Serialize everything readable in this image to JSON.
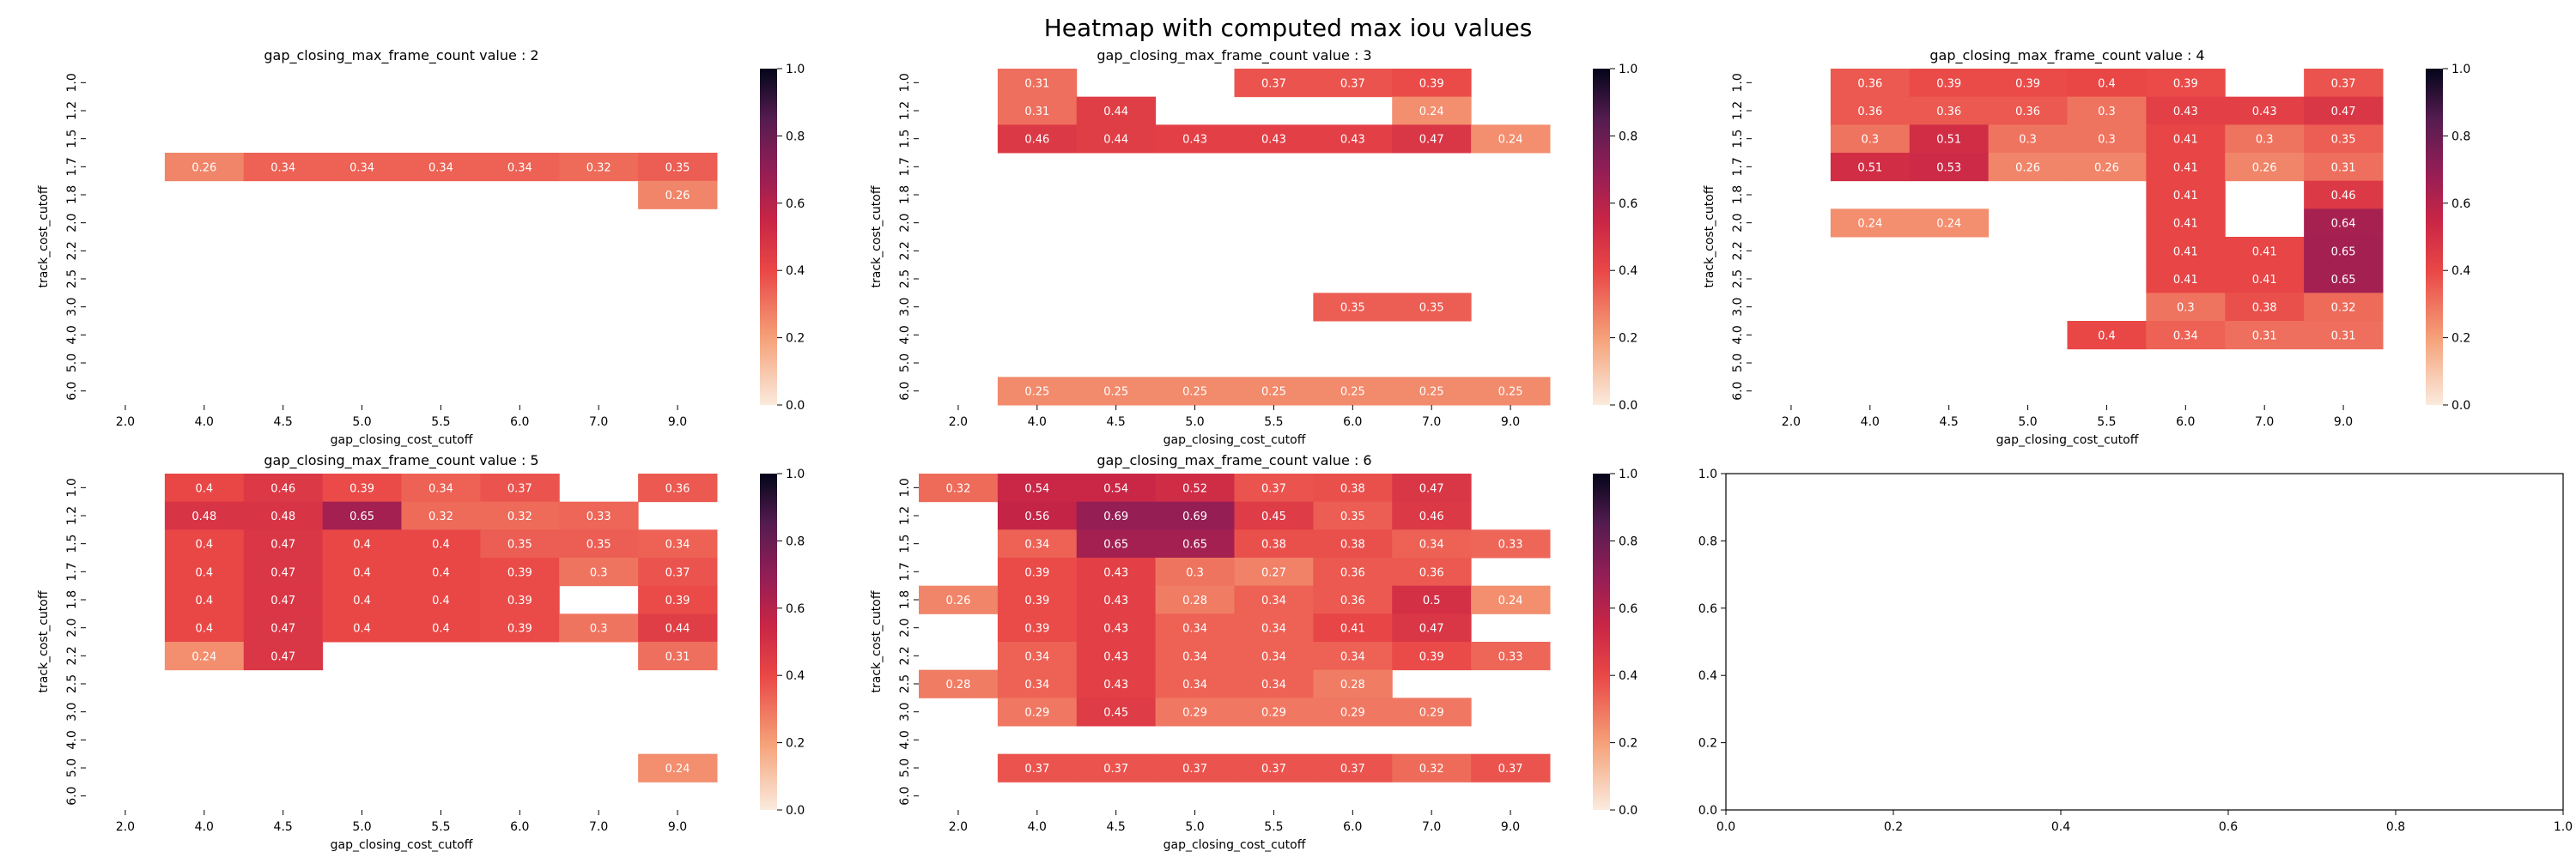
{
  "figure": {
    "suptitle": "Heatmap with computed max iou values"
  },
  "chart_data": [
    {
      "type": "heatmap",
      "title": "gap_closing_max_frame_count value : 2",
      "xlabel": "gap_closing_cost_cutoff",
      "ylabel": "track_cost_cutoff",
      "x": [
        "2.0",
        "4.0",
        "4.5",
        "5.0",
        "5.5",
        "6.0",
        "7.0",
        "9.0"
      ],
      "y": [
        "1.0",
        "1.2",
        "1.5",
        "1.7",
        "1.8",
        "2.0",
        "2.2",
        "2.5",
        "3.0",
        "4.0",
        "5.0",
        "6.0"
      ],
      "colorbar": {
        "range": [
          0,
          1.0
        ],
        "ticks": [
          "0.0",
          "0.2",
          "0.4",
          "0.6",
          "0.8",
          "1.0"
        ]
      },
      "values": [
        [
          null,
          null,
          null,
          null,
          null,
          null,
          null,
          null
        ],
        [
          null,
          null,
          null,
          null,
          null,
          null,
          null,
          null
        ],
        [
          null,
          null,
          null,
          null,
          null,
          null,
          null,
          null
        ],
        [
          null,
          0.26,
          0.34,
          0.34,
          0.34,
          0.34,
          0.32,
          0.35
        ],
        [
          null,
          null,
          null,
          null,
          null,
          null,
          null,
          0.26
        ],
        [
          null,
          null,
          null,
          null,
          null,
          null,
          null,
          null
        ],
        [
          null,
          null,
          null,
          null,
          null,
          null,
          null,
          null
        ],
        [
          null,
          null,
          null,
          null,
          null,
          null,
          null,
          null
        ],
        [
          null,
          null,
          null,
          null,
          null,
          null,
          null,
          null
        ],
        [
          null,
          null,
          null,
          null,
          null,
          null,
          null,
          null
        ],
        [
          null,
          null,
          null,
          null,
          null,
          null,
          null,
          null
        ],
        [
          null,
          null,
          null,
          null,
          null,
          null,
          null,
          null
        ]
      ]
    },
    {
      "type": "heatmap",
      "title": "gap_closing_max_frame_count value : 3",
      "xlabel": "gap_closing_cost_cutoff",
      "ylabel": "track_cost_cutoff",
      "x": [
        "2.0",
        "4.0",
        "4.5",
        "5.0",
        "5.5",
        "6.0",
        "7.0",
        "9.0"
      ],
      "y": [
        "1.0",
        "1.2",
        "1.5",
        "1.7",
        "1.8",
        "2.0",
        "2.2",
        "2.5",
        "3.0",
        "4.0",
        "5.0",
        "6.0"
      ],
      "colorbar": {
        "range": [
          0,
          1.0
        ],
        "ticks": [
          "0.0",
          "0.2",
          "0.4",
          "0.6",
          "0.8",
          "1.0"
        ]
      },
      "values": [
        [
          null,
          0.31,
          null,
          null,
          0.37,
          0.37,
          0.39,
          null
        ],
        [
          null,
          0.31,
          0.44,
          null,
          null,
          null,
          0.24,
          null
        ],
        [
          null,
          0.46,
          0.44,
          0.43,
          0.43,
          0.43,
          0.47,
          0.24
        ],
        [
          null,
          null,
          null,
          null,
          null,
          null,
          null,
          null
        ],
        [
          null,
          null,
          null,
          null,
          null,
          null,
          null,
          null
        ],
        [
          null,
          null,
          null,
          null,
          null,
          null,
          null,
          null
        ],
        [
          null,
          null,
          null,
          null,
          null,
          null,
          null,
          null
        ],
        [
          null,
          null,
          null,
          null,
          null,
          null,
          null,
          null
        ],
        [
          null,
          null,
          null,
          null,
          null,
          0.35,
          0.35,
          null
        ],
        [
          null,
          null,
          null,
          null,
          null,
          null,
          null,
          null
        ],
        [
          null,
          null,
          null,
          null,
          null,
          null,
          null,
          null
        ],
        [
          null,
          0.25,
          0.25,
          0.25,
          0.25,
          0.25,
          0.25,
          0.25
        ]
      ]
    },
    {
      "type": "heatmap",
      "title": "gap_closing_max_frame_count value : 4",
      "xlabel": "gap_closing_cost_cutoff",
      "ylabel": "track_cost_cutoff",
      "x": [
        "2.0",
        "4.0",
        "4.5",
        "5.0",
        "5.5",
        "6.0",
        "7.0",
        "9.0"
      ],
      "y": [
        "1.0",
        "1.2",
        "1.5",
        "1.7",
        "1.8",
        "2.0",
        "2.2",
        "2.5",
        "3.0",
        "4.0",
        "5.0",
        "6.0"
      ],
      "colorbar": {
        "range": [
          0,
          1.0
        ],
        "ticks": [
          "0.0",
          "0.2",
          "0.4",
          "0.6",
          "0.8",
          "1.0"
        ]
      },
      "values": [
        [
          null,
          0.36,
          0.39,
          0.39,
          0.4,
          0.39,
          null,
          0.37
        ],
        [
          null,
          0.36,
          0.36,
          0.36,
          0.3,
          0.43,
          0.43,
          0.47
        ],
        [
          null,
          0.3,
          0.51,
          0.3,
          0.3,
          0.41,
          0.3,
          0.35
        ],
        [
          null,
          0.51,
          0.53,
          0.26,
          0.26,
          0.41,
          0.26,
          0.31
        ],
        [
          null,
          null,
          null,
          null,
          null,
          0.41,
          null,
          0.46
        ],
        [
          null,
          0.24,
          0.24,
          null,
          null,
          0.41,
          null,
          0.64
        ],
        [
          null,
          null,
          null,
          null,
          null,
          0.41,
          0.41,
          0.65
        ],
        [
          null,
          null,
          null,
          null,
          null,
          0.41,
          0.41,
          0.65
        ],
        [
          null,
          null,
          null,
          null,
          null,
          0.3,
          0.38,
          0.32
        ],
        [
          null,
          null,
          null,
          null,
          0.4,
          0.34,
          0.31,
          0.31
        ],
        [
          null,
          null,
          null,
          null,
          null,
          null,
          null,
          null
        ],
        [
          null,
          null,
          null,
          null,
          null,
          null,
          null,
          null
        ]
      ]
    },
    {
      "type": "heatmap",
      "title": "gap_closing_max_frame_count value : 5",
      "xlabel": "gap_closing_cost_cutoff",
      "ylabel": "track_cost_cutoff",
      "x": [
        "2.0",
        "4.0",
        "4.5",
        "5.0",
        "5.5",
        "6.0",
        "7.0",
        "9.0"
      ],
      "y": [
        "1.0",
        "1.2",
        "1.5",
        "1.7",
        "1.8",
        "2.0",
        "2.2",
        "2.5",
        "3.0",
        "4.0",
        "5.0",
        "6.0"
      ],
      "colorbar": {
        "range": [
          0,
          1.0
        ],
        "ticks": [
          "0.0",
          "0.2",
          "0.4",
          "0.6",
          "0.8",
          "1.0"
        ]
      },
      "values": [
        [
          null,
          0.4,
          0.46,
          0.39,
          0.34,
          0.37,
          null,
          0.36
        ],
        [
          null,
          0.48,
          0.48,
          0.65,
          0.32,
          0.32,
          0.33,
          null
        ],
        [
          null,
          0.4,
          0.47,
          0.4,
          0.4,
          0.35,
          0.35,
          0.34
        ],
        [
          null,
          0.4,
          0.47,
          0.4,
          0.4,
          0.39,
          0.3,
          0.37
        ],
        [
          null,
          0.4,
          0.47,
          0.4,
          0.4,
          0.39,
          null,
          0.39
        ],
        [
          null,
          0.4,
          0.47,
          0.4,
          0.4,
          0.39,
          0.3,
          0.44
        ],
        [
          null,
          0.24,
          0.47,
          null,
          null,
          null,
          null,
          0.31
        ],
        [
          null,
          null,
          null,
          null,
          null,
          null,
          null,
          null
        ],
        [
          null,
          null,
          null,
          null,
          null,
          null,
          null,
          null
        ],
        [
          null,
          null,
          null,
          null,
          null,
          null,
          null,
          null
        ],
        [
          null,
          null,
          null,
          null,
          null,
          null,
          null,
          0.24
        ],
        [
          null,
          null,
          null,
          null,
          null,
          null,
          null,
          null
        ]
      ]
    },
    {
      "type": "heatmap",
      "title": "gap_closing_max_frame_count value : 6",
      "xlabel": "gap_closing_cost_cutoff",
      "ylabel": "track_cost_cutoff",
      "x": [
        "2.0",
        "4.0",
        "4.5",
        "5.0",
        "5.5",
        "6.0",
        "7.0",
        "9.0"
      ],
      "y": [
        "1.0",
        "1.2",
        "1.5",
        "1.7",
        "1.8",
        "2.0",
        "2.2",
        "2.5",
        "3.0",
        "4.0",
        "5.0",
        "6.0"
      ],
      "colorbar": {
        "range": [
          0,
          1.0
        ],
        "ticks": [
          "0.0",
          "0.2",
          "0.4",
          "0.6",
          "0.8",
          "1.0"
        ]
      },
      "values": [
        [
          0.32,
          0.54,
          0.54,
          0.52,
          0.37,
          0.38,
          0.47,
          null
        ],
        [
          null,
          0.56,
          0.69,
          0.69,
          0.45,
          0.35,
          0.46,
          null
        ],
        [
          null,
          0.34,
          0.65,
          0.65,
          0.38,
          0.38,
          0.34,
          0.33
        ],
        [
          null,
          0.39,
          0.43,
          0.3,
          0.27,
          0.36,
          0.36,
          null
        ],
        [
          0.26,
          0.39,
          0.43,
          0.28,
          0.34,
          0.36,
          0.5,
          0.24
        ],
        [
          null,
          0.39,
          0.43,
          0.34,
          0.34,
          0.41,
          0.47,
          null
        ],
        [
          null,
          0.34,
          0.43,
          0.34,
          0.34,
          0.34,
          0.39,
          0.33
        ],
        [
          0.28,
          0.34,
          0.43,
          0.34,
          0.34,
          0.28,
          null,
          null
        ],
        [
          null,
          0.29,
          0.45,
          0.29,
          0.29,
          0.29,
          0.29,
          null
        ],
        [
          null,
          null,
          null,
          null,
          null,
          null,
          null,
          null
        ],
        [
          null,
          0.37,
          0.37,
          0.37,
          0.37,
          0.37,
          0.32,
          0.37
        ],
        [
          null,
          null,
          null,
          null,
          null,
          null,
          null,
          null
        ]
      ]
    },
    {
      "type": "scatter",
      "title": "",
      "xlabel": "",
      "ylabel": "",
      "xlim": [
        0,
        1.0
      ],
      "ylim": [
        0,
        1.0
      ],
      "xticks": [
        "0.0",
        "0.2",
        "0.4",
        "0.6",
        "0.8",
        "1.0"
      ],
      "yticks": [
        "0.0",
        "0.2",
        "0.4",
        "0.6",
        "0.8",
        "1.0"
      ],
      "series": []
    }
  ]
}
